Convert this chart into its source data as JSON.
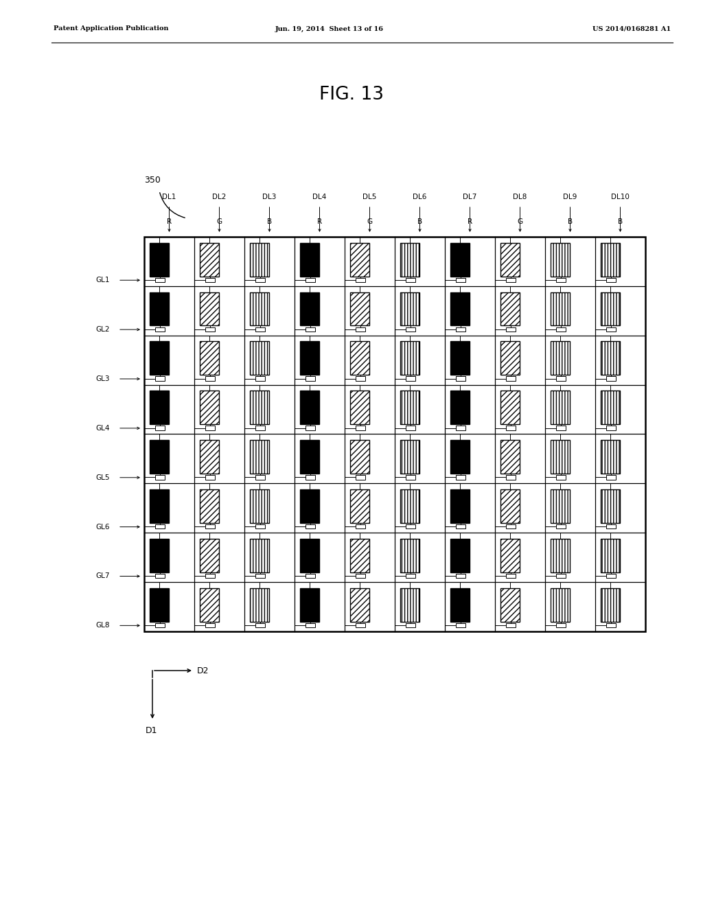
{
  "title": "FIG. 13",
  "header_left": "Patent Application Publication",
  "header_mid": "Jun. 19, 2014  Sheet 13 of 16",
  "header_right": "US 2014/0168281 A1",
  "figure_label": "350",
  "num_cols": 10,
  "num_rows": 8,
  "col_labels": [
    "DL1",
    "DL2",
    "DL3",
    "DL4",
    "DL5",
    "DL6",
    "DL7",
    "DL8",
    "DL9",
    "DL10"
  ],
  "row_labels": [
    "GL1",
    "GL2",
    "GL3",
    "GL4",
    "GL5",
    "GL6",
    "GL7",
    "GL8"
  ],
  "color_pattern": [
    "R",
    "G",
    "B",
    "R",
    "G",
    "B",
    "R",
    "G",
    "B",
    "B"
  ],
  "bg_color": "#ffffff"
}
